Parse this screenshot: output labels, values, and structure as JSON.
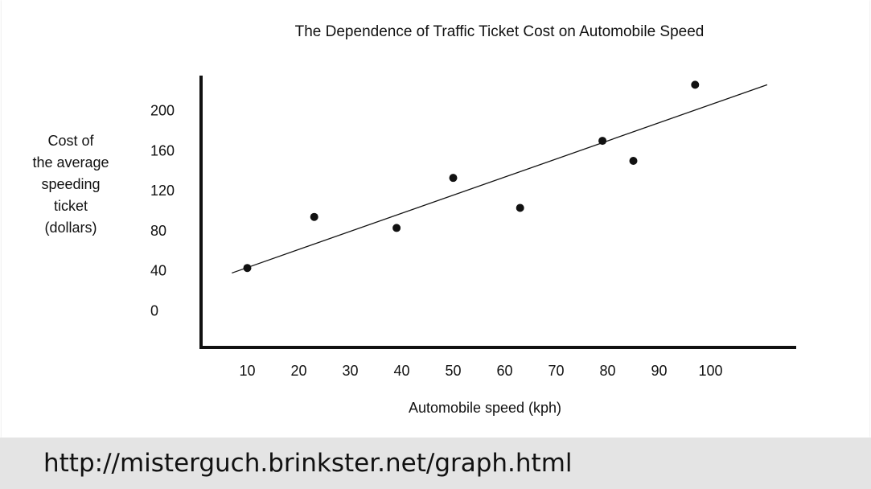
{
  "footer": {
    "url": "http://misterguch.brinkster.net/graph.html"
  },
  "colors": {
    "accent": "#a9d6dd",
    "footer_bg": "#e4e4e4",
    "ink": "#111111"
  },
  "chart_data": {
    "type": "scatter",
    "title": "The Dependence of Traffic Ticket Cost on Automobile Speed",
    "xlabel": "Automobile speed (kph)",
    "ylabel_lines": [
      "Cost of",
      "the average",
      "speeding",
      "ticket",
      "(dollars)"
    ],
    "x_ticks": [
      "10",
      "20",
      "30",
      "40",
      "50",
      "60",
      "70",
      "80",
      "90",
      "100"
    ],
    "y_ticks": [
      "0",
      "40",
      "80",
      "120",
      "160",
      "200"
    ],
    "xlim": [
      0,
      110
    ],
    "ylim": [
      -40,
      235
    ],
    "grid": false,
    "points": [
      {
        "x": 10,
        "y": 42
      },
      {
        "x": 23,
        "y": 93
      },
      {
        "x": 39,
        "y": 82
      },
      {
        "x": 50,
        "y": 132
      },
      {
        "x": 63,
        "y": 102
      },
      {
        "x": 79,
        "y": 169
      },
      {
        "x": 85,
        "y": 149
      },
      {
        "x": 97,
        "y": 225
      }
    ],
    "trendline": {
      "x": [
        7,
        111
      ],
      "y": [
        37,
        225
      ]
    }
  }
}
